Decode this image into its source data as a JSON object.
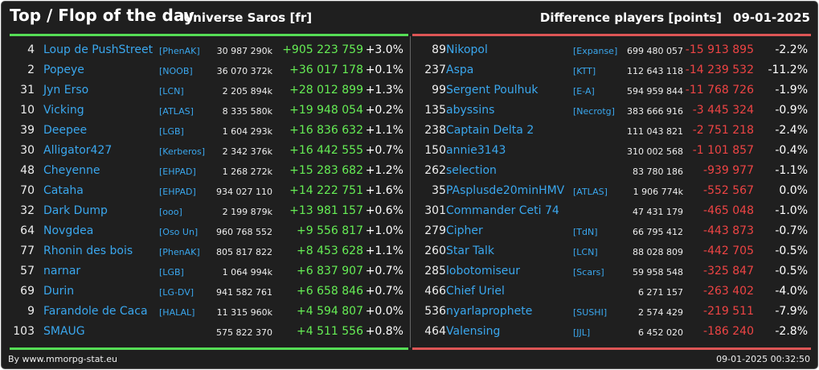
{
  "header": {
    "title": "Top / Flop of the day",
    "subtitle": "Universe Saros [fr]",
    "metric": "Difference players [points]",
    "date": "09-01-2025"
  },
  "colors": {
    "background": "#1f1f1f",
    "link": "#3aa7ee",
    "positive": "#66ee55",
    "negative": "#ee4444",
    "accent_green": "#55dd55",
    "accent_red": "#dd5555"
  },
  "top": [
    {
      "rank": "4",
      "name": "Loup de PushStreet",
      "guild": "[PhenAK]",
      "score": "30 987 290k",
      "diff": "+905 223 759",
      "pct": "+3.0%"
    },
    {
      "rank": "2",
      "name": "Popeye",
      "guild": "[NOOB]",
      "score": "36 070 372k",
      "diff": "+36 017 178",
      "pct": "+0.1%"
    },
    {
      "rank": "31",
      "name": "Jyn Erso",
      "guild": "[LCN]",
      "score": "2 205 894k",
      "diff": "+28 012 899",
      "pct": "+1.3%"
    },
    {
      "rank": "10",
      "name": "Vicking",
      "guild": "[ATLAS]",
      "score": "8 335 580k",
      "diff": "+19 948 054",
      "pct": "+0.2%"
    },
    {
      "rank": "39",
      "name": "Deepee",
      "guild": "[LGB]",
      "score": "1 604 293k",
      "diff": "+16 836 632",
      "pct": "+1.1%"
    },
    {
      "rank": "30",
      "name": "Alligator427",
      "guild": "[Kerberos]",
      "score": "2 342 376k",
      "diff": "+16 442 555",
      "pct": "+0.7%"
    },
    {
      "rank": "48",
      "name": "Cheyenne",
      "guild": "[EHPAD]",
      "score": "1 268 272k",
      "diff": "+15 283 682",
      "pct": "+1.2%"
    },
    {
      "rank": "70",
      "name": "Cataha",
      "guild": "[EHPAD]",
      "score": "934 027 110",
      "diff": "+14 222 751",
      "pct": "+1.6%"
    },
    {
      "rank": "32",
      "name": "Dark Dump",
      "guild": "[ooo]",
      "score": "2 199 879k",
      "diff": "+13 981 157",
      "pct": "+0.6%"
    },
    {
      "rank": "64",
      "name": "Novgdea",
      "guild": "[Oso Un]",
      "score": "960 768 552",
      "diff": "+9 556 817",
      "pct": "+1.0%"
    },
    {
      "rank": "77",
      "name": "Rhonin des bois",
      "guild": "[PhenAK]",
      "score": "805 817 822",
      "diff": "+8 453 628",
      "pct": "+1.1%"
    },
    {
      "rank": "57",
      "name": "narnar",
      "guild": "[LGB]",
      "score": "1 064 994k",
      "diff": "+6 837 907",
      "pct": "+0.7%"
    },
    {
      "rank": "69",
      "name": "Durin",
      "guild": "[LG-DV]",
      "score": "941 582 761",
      "diff": "+6 658 846",
      "pct": "+0.7%"
    },
    {
      "rank": "9",
      "name": "Farandole de Caca",
      "guild": "[HALAL]",
      "score": "11 315 960k",
      "diff": "+4 594 807",
      "pct": "+0.0%"
    },
    {
      "rank": "103",
      "name": "SMAUG",
      "guild": "",
      "score": "575 822 370",
      "diff": "+4 511 556",
      "pct": "+0.8%"
    }
  ],
  "flop": [
    {
      "rank": "89",
      "name": "Nikopol",
      "guild": "[Expanse]",
      "score": "699 480 057",
      "diff": "-15 913 895",
      "pct": "-2.2%"
    },
    {
      "rank": "237",
      "name": "Aspa",
      "guild": "[KTT]",
      "score": "112 643 118",
      "diff": "-14 239 532",
      "pct": "-11.2%"
    },
    {
      "rank": "99",
      "name": "Sergent Poulhuk",
      "guild": "[E-A]",
      "score": "594 959 844",
      "diff": "-11 768 726",
      "pct": "-1.9%"
    },
    {
      "rank": "135",
      "name": "abyssins",
      "guild": "[Necrotg]",
      "score": "383 666 916",
      "diff": "-3 445 324",
      "pct": "-0.9%"
    },
    {
      "rank": "238",
      "name": "Captain Delta 2",
      "guild": "",
      "score": "111 043 821",
      "diff": "-2 751 218",
      "pct": "-2.4%"
    },
    {
      "rank": "150",
      "name": "annie3143",
      "guild": "",
      "score": "310 002 568",
      "diff": "-1 101 857",
      "pct": "-0.4%"
    },
    {
      "rank": "262",
      "name": "selection",
      "guild": "",
      "score": "83 780 186",
      "diff": "-939 977",
      "pct": "-1.1%"
    },
    {
      "rank": "35",
      "name": "PAsplusde20minHMV",
      "guild": "[ATLAS]",
      "score": "1 906 774k",
      "diff": "-552 567",
      "pct": "0.0%"
    },
    {
      "rank": "301",
      "name": "Commander Ceti 74",
      "guild": "",
      "score": "47 431 179",
      "diff": "-465 048",
      "pct": "-1.0%"
    },
    {
      "rank": "279",
      "name": "Cipher",
      "guild": "[TdN]",
      "score": "66 795 412",
      "diff": "-443 873",
      "pct": "-0.7%"
    },
    {
      "rank": "260",
      "name": "Star Talk",
      "guild": "[LCN]",
      "score": "88 028 809",
      "diff": "-442 705",
      "pct": "-0.5%"
    },
    {
      "rank": "285",
      "name": "lobotomiseur",
      "guild": "[Scars]",
      "score": "59 958 548",
      "diff": "-325 847",
      "pct": "-0.5%"
    },
    {
      "rank": "466",
      "name": "Chief Uriel",
      "guild": "",
      "score": "6 271 157",
      "diff": "-263 402",
      "pct": "-4.0%"
    },
    {
      "rank": "536",
      "name": "nyarlaprophete",
      "guild": "[SUSHI]",
      "score": "2 574 429",
      "diff": "-219 511",
      "pct": "-7.9%"
    },
    {
      "rank": "464",
      "name": "Valensing",
      "guild": "[JJL]",
      "score": "6 452 020",
      "diff": "-186 240",
      "pct": "-2.8%"
    }
  ],
  "footer": {
    "source": "By www.mmorpg-stat.eu",
    "timestamp": "09-01-2025 00:32:50"
  }
}
